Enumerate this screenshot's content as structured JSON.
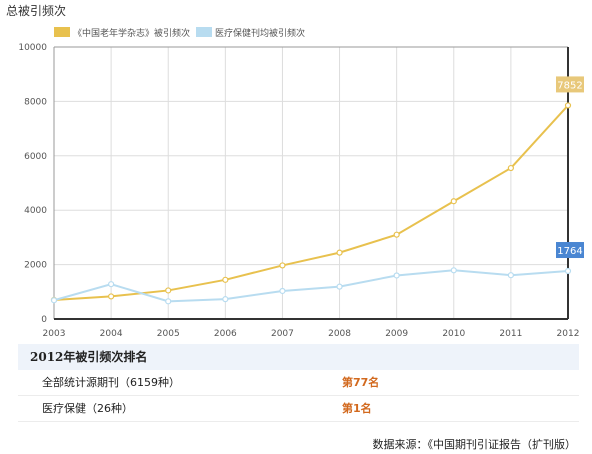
{
  "page_title": "总被引频次",
  "legend": [
    {
      "label": "《中国老年学杂志》被引频次",
      "color": "#e8c14e"
    },
    {
      "label": "医疗保健刊均被引频次",
      "color": "#b8dcf0"
    }
  ],
  "chart_data": {
    "type": "line",
    "x": [
      "2003",
      "2004",
      "2005",
      "2006",
      "2007",
      "2008",
      "2009",
      "2010",
      "2011",
      "2012"
    ],
    "ylim": [
      0,
      10000
    ],
    "yticks": [
      0,
      2000,
      4000,
      6000,
      8000,
      10000
    ],
    "grid": true,
    "legend_position": "top-left",
    "series": [
      {
        "name": "《中国老年学杂志》被引频次",
        "color": "#e8c14e",
        "values": [
          700,
          830,
          1050,
          1440,
          1970,
          2440,
          3100,
          4330,
          5550,
          7852
        ],
        "end_label": "7852",
        "label_color": "#e8c87a"
      },
      {
        "name": "医疗保健刊均被引频次",
        "color": "#b8dcf0",
        "values": [
          690,
          1280,
          650,
          730,
          1030,
          1190,
          1600,
          1790,
          1610,
          1764
        ],
        "end_label": "1764",
        "label_color": "#4a86d2"
      }
    ]
  },
  "rank": {
    "header": "2012年被引频次排名",
    "rows": [
      {
        "label": "全部统计源期刊（6159种）",
        "value": "第77名"
      },
      {
        "label": "医疗保健（26种）",
        "value": "第1名"
      }
    ]
  },
  "source": "数据来源：《中国期刊引证报告（扩刊版）"
}
